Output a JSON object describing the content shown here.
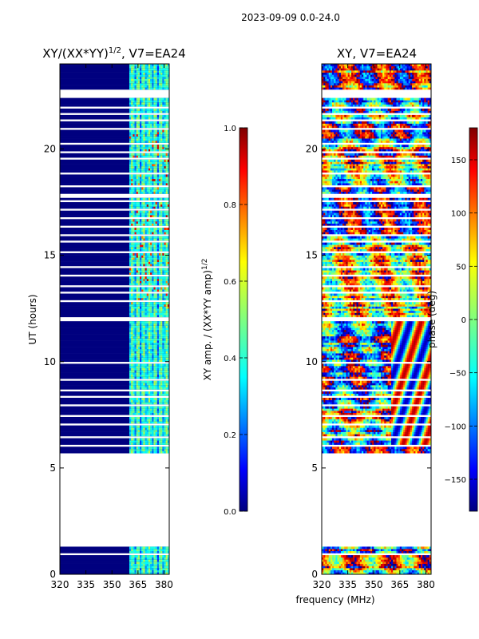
{
  "suptitle": "2023-09-09 0.0-24.0",
  "chart_data": [
    {
      "type": "heatmap",
      "id": "amp",
      "title_prefix": "XY/(XX*YY)",
      "title_sup": "1/2",
      "title_suffix": ", V7=EA24",
      "xlabel": "",
      "ylabel": "UT (hours)",
      "xlim": [
        320,
        383
      ],
      "ylim": [
        0,
        24
      ],
      "xticks": [
        320,
        335,
        350,
        365,
        380
      ],
      "yticks": [
        0,
        5,
        10,
        15,
        20
      ],
      "colorbar": {
        "label_prefix": "XY amp. / (XX*YY amp)",
        "label_sup": "1/2",
        "range": [
          0.0,
          1.0
        ],
        "ticks": [
          "0.0",
          "0.2",
          "0.4",
          "0.6",
          "0.8",
          "1.0"
        ],
        "colormap": "jet"
      },
      "data_gap_hours": [
        1.3,
        5.7
      ],
      "active_band_mhz": [
        360,
        383
      ]
    },
    {
      "type": "heatmap",
      "id": "phase",
      "title": "XY, V7=EA24",
      "xlabel": "frequency (MHz)",
      "ylabel": "",
      "xlim": [
        320,
        383
      ],
      "ylim": [
        0,
        24
      ],
      "xticks": [
        320,
        335,
        350,
        365,
        380
      ],
      "yticks": [
        0,
        5,
        10,
        15,
        20
      ],
      "colorbar": {
        "label": "phase (deg)",
        "range": [
          -180,
          180
        ],
        "ticks": [
          "−150",
          "−100",
          "−50",
          "0",
          "50",
          "100",
          "150"
        ],
        "colormap": "jet"
      },
      "data_gap_hours": [
        1.3,
        5.7
      ]
    }
  ]
}
